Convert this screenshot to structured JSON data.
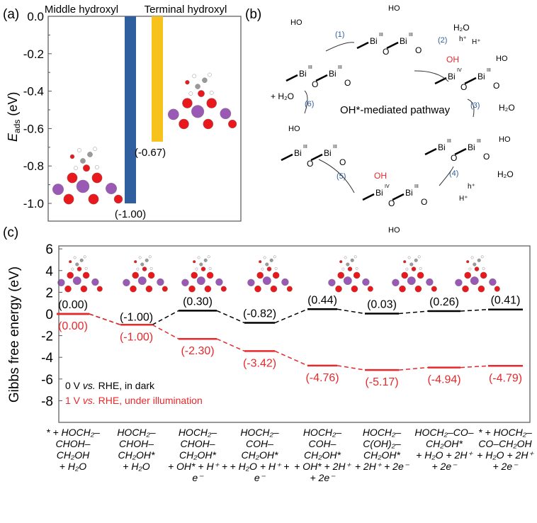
{
  "panel_labels": {
    "a": "(a)",
    "b": "(b)",
    "c": "(c)"
  },
  "chart_data": [
    {
      "type": "bar",
      "panel": "a",
      "categories": [
        "Middle hydroxyl",
        "Terminal hydroxyl"
      ],
      "values": [
        -1.0,
        -0.67
      ],
      "value_labels": [
        "(-1.00)",
        "(-0.67)"
      ],
      "colors": [
        "#2f5f9e",
        "#f7c21b"
      ],
      "ylabel": "E",
      "ylabel_sub": "ads",
      "ylabel_unit": "(eV)",
      "ylim": [
        -1.1,
        0.0
      ],
      "yticks": [
        "0.0",
        "-0.2",
        "-0.4",
        "-0.6",
        "-0.8",
        "-1.0"
      ],
      "ytick_values": [
        0.0,
        -0.2,
        -0.4,
        -0.6,
        -0.8,
        -1.0
      ]
    },
    {
      "type": "line",
      "panel": "c",
      "subtype": "energy-level diagram",
      "ylabel": "Gibbs free energy (eV)",
      "ylim": [
        -8.6,
        6.2
      ],
      "yticks": [
        "6",
        "4",
        "2",
        "0",
        "-2",
        "-4",
        "-6",
        "-8"
      ],
      "ytick_values": [
        6,
        4,
        2,
        0,
        -2,
        -4,
        -6,
        -8
      ],
      "categories": [
        [
          "* + HOCH₂–CHOH–CH₂OH",
          "+ H₂O"
        ],
        [
          "HOCH₂–CHOH–CH₂OH*",
          "+ H₂O"
        ],
        [
          "HOCH₂–CHOH–CH₂OH*",
          "+ OH* + H⁺ + e⁻"
        ],
        [
          "HOCH₂–COH–CH₂OH*",
          "+ H₂O + H⁺ + e⁻"
        ],
        [
          "HOCH₂–COH–CH₂OH*",
          "+ OH* + 2H⁺ + 2e⁻"
        ],
        [
          "HOCH₂–C(OH)₂–CH₂OH*",
          "+ 2H⁺ + 2e⁻"
        ],
        [
          "HOCH₂–CO–CH₂OH*",
          "+ H₂O + 2H⁺ + 2e⁻"
        ],
        [
          "* + HOCH₂–CO–CH₂OH",
          "+ H₂O + 2H⁺ + 2e⁻"
        ]
      ],
      "series": [
        {
          "name": "0 V vs. RHE, in dark",
          "color": "#000000",
          "values": [
            0.0,
            -1.0,
            0.3,
            -0.82,
            0.44,
            0.03,
            0.26,
            0.41
          ],
          "labels": [
            "(0.00)",
            "(-1.00)",
            "(0.30)",
            "(-0.82)",
            "(0.44)",
            "(0.03)",
            "(0.26)",
            "(0.41)"
          ]
        },
        {
          "name": "1 V vs. RHE, under illumination",
          "color": "#e8282b",
          "values": [
            0.0,
            -1.0,
            -2.3,
            -3.42,
            -4.76,
            -5.17,
            -4.94,
            -4.79
          ],
          "labels": [
            "(0.00)",
            "(-1.00)",
            "(-2.30)",
            "(-3.42)",
            "(-4.76)",
            "(-5.17)",
            "(-4.94)",
            "(-4.79)"
          ]
        }
      ],
      "legend": {
        "placement": "bottom-left",
        "dark": {
          "a": "0 V ",
          "b": "vs.",
          "c": " RHE, in dark"
        },
        "light": {
          "a": "1 V ",
          "b": "vs.",
          "c": " RHE, under illumination"
        }
      }
    }
  ],
  "scheme": {
    "title": "OH*-mediated pathway",
    "steps": [
      "(1)",
      "(2)",
      "(3)",
      "(4)",
      "(5)",
      "(6)"
    ],
    "texts": {
      "h2o": "H₂O",
      "hplus": "H⁺",
      "hole": "h⁺",
      "bi": "Bi",
      "o": "O",
      "oh": "OH",
      "ho": "HO",
      "ox3": "III",
      "ox4": "IV",
      "plus_h2o": "+ H₂O"
    },
    "colors": {
      "step": "#2f5f9e",
      "oxygen": "#e8282b"
    }
  }
}
